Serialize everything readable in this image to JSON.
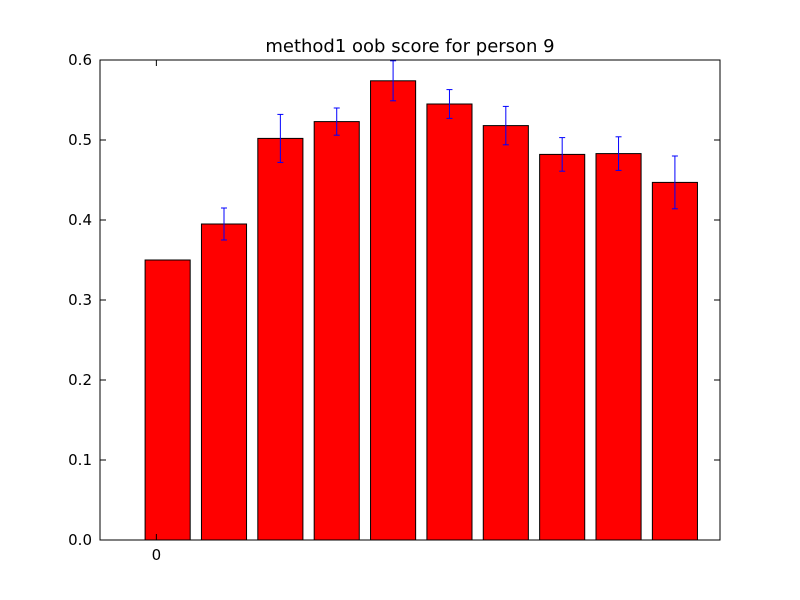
{
  "chart_data": {
    "type": "bar",
    "title": "method1 oob score for person 9",
    "xlabel": "",
    "ylabel": "",
    "bar_color": "#ff0000",
    "edge_color": "#000000",
    "errorbar_color": "#0000ff",
    "grid": false,
    "legend": "none",
    "ylim": [
      0,
      0.6
    ],
    "yticks": [
      "0.0",
      "0.1",
      "0.2",
      "0.3",
      "0.4",
      "0.5",
      "0.6"
    ],
    "xtick_labels": [
      "0"
    ],
    "values": [
      0.35,
      0.395,
      0.502,
      0.523,
      0.574,
      0.545,
      0.518,
      0.482,
      0.483,
      0.447
    ],
    "errors": [
      0.0,
      0.02,
      0.03,
      0.017,
      0.025,
      0.018,
      0.024,
      0.021,
      0.021,
      0.033
    ]
  }
}
